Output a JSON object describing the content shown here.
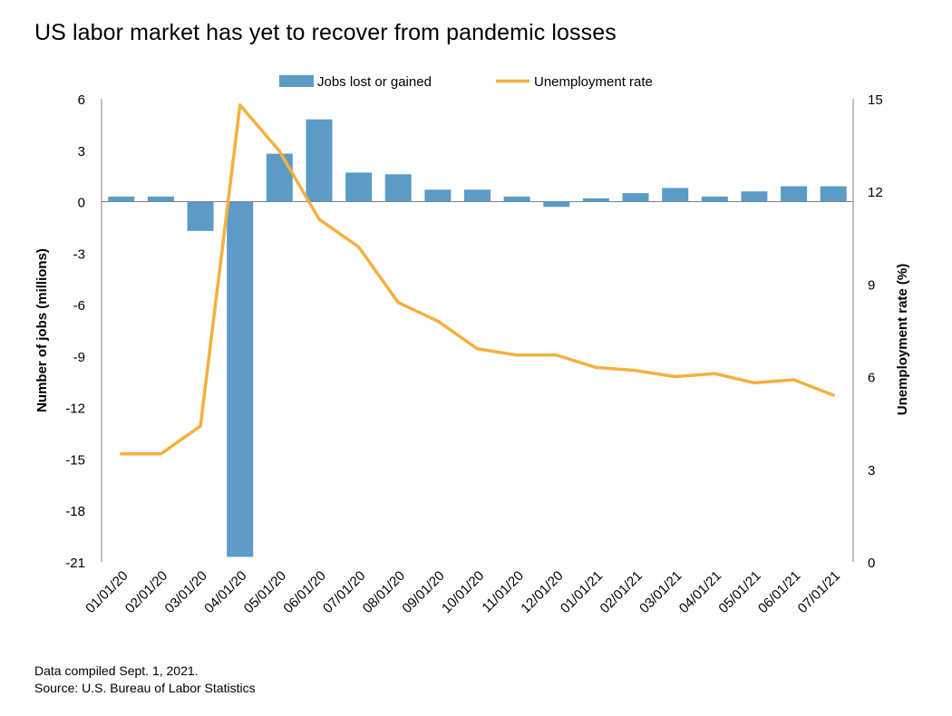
{
  "title": "US labor market has yet to recover from pandemic losses",
  "footnotes": {
    "compiled": "Data compiled Sept. 1, 2021.",
    "source": "Source: U.S. Bureau of Labor Statistics"
  },
  "colors": {
    "bar": "#5b9bc6",
    "line": "#f4b13f",
    "axis": "#7f7f7f"
  },
  "chart_data": {
    "type": "bar",
    "categories": [
      "01/01/20",
      "02/01/20",
      "03/01/20",
      "04/01/20",
      "05/01/20",
      "06/01/20",
      "07/01/20",
      "08/01/20",
      "09/01/20",
      "10/01/20",
      "11/01/20",
      "12/01/20",
      "01/01/21",
      "02/01/21",
      "03/01/21",
      "04/01/21",
      "05/01/21",
      "06/01/21",
      "07/01/21"
    ],
    "series": [
      {
        "name": "Jobs lost or gained",
        "type": "bar",
        "axis": "left",
        "values": [
          0.3,
          0.3,
          -1.7,
          -20.7,
          2.8,
          4.8,
          1.7,
          1.6,
          0.7,
          0.7,
          0.3,
          -0.3,
          0.2,
          0.5,
          0.8,
          0.3,
          0.6,
          0.9,
          0.9
        ]
      },
      {
        "name": "Unemployment rate",
        "type": "line",
        "axis": "right",
        "values": [
          3.5,
          3.5,
          4.4,
          14.8,
          13.3,
          11.1,
          10.2,
          8.4,
          7.8,
          6.9,
          6.7,
          6.7,
          6.3,
          6.2,
          6.0,
          6.1,
          5.8,
          5.9,
          5.4
        ]
      }
    ],
    "y_left": {
      "label": "Number of jobs (millions)",
      "min": -21,
      "max": 6,
      "ticks": [
        6,
        3,
        0,
        -3,
        -6,
        -9,
        -12,
        -15,
        -18,
        -21
      ]
    },
    "y_right": {
      "label": "Unemployment rate (%)",
      "min": 0,
      "max": 15,
      "ticks": [
        15,
        12,
        9,
        6,
        3,
        0
      ]
    },
    "legend": {
      "position": "top",
      "entries": [
        "Jobs lost or gained",
        "Unemployment rate"
      ]
    },
    "grid": false
  }
}
